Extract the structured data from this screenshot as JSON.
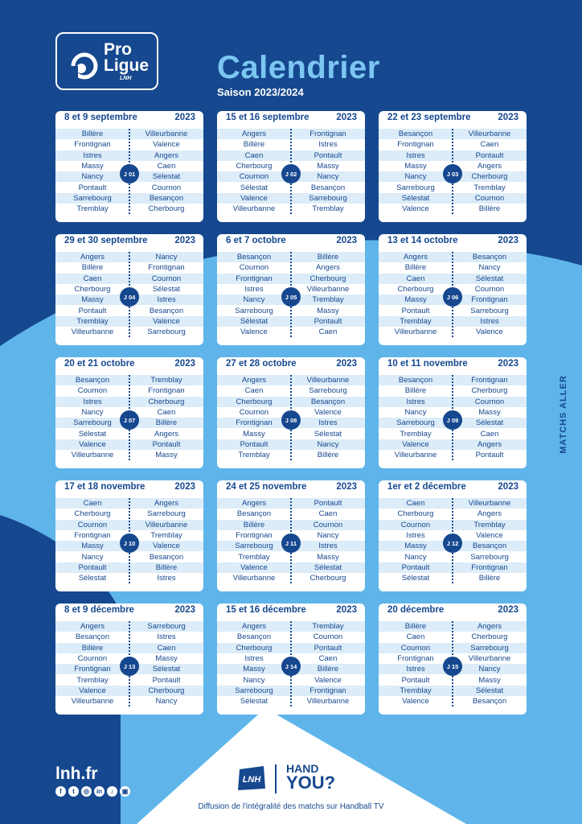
{
  "header": {
    "logo_line1": "Pro",
    "logo_line2": "Ligue",
    "logo_line3": "LNH",
    "title": "Calendrier",
    "subtitle": "Saison 2023/2024"
  },
  "side_label": "MATCHS ALLER",
  "year": "2023",
  "rounds": [
    {
      "date": "8 et 9 septembre",
      "badge": "J 01",
      "home": [
        "Billère",
        "Frontignan",
        "Istres",
        "Massy",
        "Nancy",
        "Pontault",
        "Sarrebourg",
        "Tremblay"
      ],
      "away": [
        "Villeurbanne",
        "Valence",
        "Angers",
        "Caen",
        "Sélestat",
        "Cournon",
        "Besançon",
        "Cherbourg"
      ]
    },
    {
      "date": "15 et 16 septembre",
      "badge": "J 02",
      "home": [
        "Angers",
        "Billère",
        "Caen",
        "Cherbourg",
        "Cournon",
        "Sélestat",
        "Valence",
        "Villeurbanne"
      ],
      "away": [
        "Frontignan",
        "Istres",
        "Pontault",
        "Massy",
        "Nancy",
        "Besançon",
        "Sarrebourg",
        "Tremblay"
      ]
    },
    {
      "date": "22 et 23 septembre",
      "badge": "J 03",
      "home": [
        "Besançon",
        "Frontignan",
        "Istres",
        "Massy",
        "Nancy",
        "Sarrebourg",
        "Sélestat",
        "Valence"
      ],
      "away": [
        "Villeurbanne",
        "Caen",
        "Pontault",
        "Angers",
        "Cherbourg",
        "Tremblay",
        "Cournon",
        "Billère"
      ]
    },
    {
      "date": "29 et 30 septembre",
      "badge": "J 04",
      "home": [
        "Angers",
        "Billère",
        "Caen",
        "Cherbourg",
        "Massy",
        "Pontault",
        "Tremblay",
        "Villeurbanne"
      ],
      "away": [
        "Nancy",
        "Frontignan",
        "Cournon",
        "Sélestat",
        "Istres",
        "Besançon",
        "Valence",
        "Sarrebourg"
      ]
    },
    {
      "date": "6 et 7 octobre",
      "badge": "J 05",
      "home": [
        "Besançon",
        "Cournon",
        "Frontignan",
        "Istres",
        "Nancy",
        "Sarrebourg",
        "Sélestat",
        "Valence"
      ],
      "away": [
        "Billère",
        "Angers",
        "Cherbourg",
        "Villeurbanne",
        "Tremblay",
        "Massy",
        "Pontault",
        "Caen"
      ]
    },
    {
      "date": "13 et 14 octobre",
      "badge": "J 06",
      "home": [
        "Angers",
        "Billère",
        "Caen",
        "Cherbourg",
        "Massy",
        "Pontault",
        "Tremblay",
        "Villeurbanne"
      ],
      "away": [
        "Besançon",
        "Nancy",
        "Sélestat",
        "Cournon",
        "Frontignan",
        "Sarrebourg",
        "Istres",
        "Valence"
      ]
    },
    {
      "date": "20 et 21 octobre",
      "badge": "J 07",
      "home": [
        "Besançon",
        "Cournon",
        "Istres",
        "Nancy",
        "Sarrebourg",
        "Sélestat",
        "Valence",
        "Villeurbanne"
      ],
      "away": [
        "Tremblay",
        "Frontignan",
        "Cherbourg",
        "Caen",
        "Billère",
        "Angers",
        "Pontault",
        "Massy"
      ]
    },
    {
      "date": "27 et 28 octobre",
      "badge": "J 08",
      "home": [
        "Angers",
        "Caen",
        "Cherbourg",
        "Cournon",
        "Frontignan",
        "Massy",
        "Pontault",
        "Tremblay"
      ],
      "away": [
        "Villeurbanne",
        "Sarrebourg",
        "Besançon",
        "Valence",
        "Istres",
        "Sélestat",
        "Nancy",
        "Billère"
      ]
    },
    {
      "date": "10 et 11 novembre",
      "badge": "J 09",
      "home": [
        "Besançon",
        "Billère",
        "Istres",
        "Nancy",
        "Sarrebourg",
        "Tremblay",
        "Valence",
        "Villeurbanne"
      ],
      "away": [
        "Frontignan",
        "Cherbourg",
        "Cournon",
        "Massy",
        "Sélestat",
        "Caen",
        "Angers",
        "Pontault"
      ]
    },
    {
      "date": "17 et 18 novembre",
      "badge": "J 10",
      "home": [
        "Caen",
        "Cherbourg",
        "Cournon",
        "Frontignan",
        "Massy",
        "Nancy",
        "Pontault",
        "Sélestat"
      ],
      "away": [
        "Angers",
        "Sarrebourg",
        "Villeurbanne",
        "Tremblay",
        "Valence",
        "Besançon",
        "Billère",
        "Istres"
      ]
    },
    {
      "date": "24 et 25 novembre",
      "badge": "J 11",
      "home": [
        "Angers",
        "Besançon",
        "Billère",
        "Frontignan",
        "Sarrebourg",
        "Tremblay",
        "Valence",
        "Villeurbanne"
      ],
      "away": [
        "Pontault",
        "Caen",
        "Cournon",
        "Nancy",
        "Istres",
        "Massy",
        "Sélestat",
        "Cherbourg"
      ]
    },
    {
      "date": "1er et 2 décembre",
      "badge": "J 12",
      "home": [
        "Caen",
        "Cherbourg",
        "Cournon",
        "Istres",
        "Massy",
        "Nancy",
        "Pontault",
        "Sélestat"
      ],
      "away": [
        "Villeurbanne",
        "Angers",
        "Tremblay",
        "Valence",
        "Besançon",
        "Sarrebourg",
        "Frontignan",
        "Billère"
      ]
    },
    {
      "date": "8 et 9 décembre",
      "badge": "J 13",
      "home": [
        "Angers",
        "Besançon",
        "Billère",
        "Cournon",
        "Frontignan",
        "Tremblay",
        "Valence",
        "Villeurbanne"
      ],
      "away": [
        "Sarrebourg",
        "Istres",
        "Caen",
        "Massy",
        "Sélestat",
        "Pontault",
        "Cherbourg",
        "Nancy"
      ]
    },
    {
      "date": "15 et 16 décembre",
      "badge": "J 14",
      "home": [
        "Angers",
        "Besançon",
        "Cherbourg",
        "Istres",
        "Massy",
        "Nancy",
        "Sarrebourg",
        "Sélestat"
      ],
      "away": [
        "Tremblay",
        "Cournon",
        "Pontault",
        "Caen",
        "Billère",
        "Valence",
        "Frontignan",
        "Villeurbanne"
      ]
    },
    {
      "date": "20 décembre",
      "badge": "J 15",
      "home": [
        "Billère",
        "Caen",
        "Cournon",
        "Frontignan",
        "Istres",
        "Pontault",
        "Tremblay",
        "Valence"
      ],
      "away": [
        "Angers",
        "Cherbourg",
        "Sarrebourg",
        "Villeurbanne",
        "Nancy",
        "Massy",
        "Sélestat",
        "Besançon"
      ]
    }
  ],
  "footer": {
    "url": "lnh.fr",
    "socials": [
      "facebook-icon",
      "twitter-icon",
      "instagram-icon",
      "linkedin-icon",
      "tiktok-icon",
      "twitch-icon"
    ],
    "lnh": "LNH",
    "hand": "HAND",
    "you": "YOU?",
    "diffusion": "Diffusion de l'intégralité des matchs sur Handball TV"
  },
  "colors": {
    "navy": "#16488f",
    "light_blue": "#5fb5ea",
    "title_blue": "#7cc6f2",
    "row_stripe": "#dcecf8"
  }
}
